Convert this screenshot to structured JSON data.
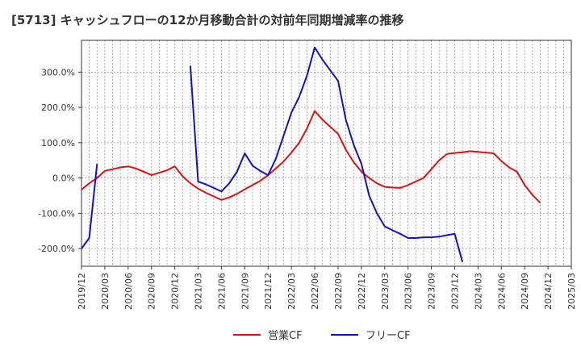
{
  "chart_data": {
    "type": "line",
    "title": "[5713]  キャッシュフローの12か月移動合計の対前年同期増減率の推移",
    "xlabel": "",
    "ylabel": "",
    "x_ticks": [
      "2019/12",
      "2020/03",
      "2020/06",
      "2020/09",
      "2020/12",
      "2021/03",
      "2021/06",
      "2021/09",
      "2021/12",
      "2022/03",
      "2022/06",
      "2022/09",
      "2022/12",
      "2023/03",
      "2023/06",
      "2023/09",
      "2023/12",
      "2024/03",
      "2024/06",
      "2024/09",
      "2024/12",
      "2025/03"
    ],
    "y_ticks": [
      -200,
      -100,
      0,
      100,
      200,
      300
    ],
    "y_tick_labels": [
      "-200.0%",
      "-100.0%",
      "0.0%",
      "100.0%",
      "200.0%",
      "300.0%"
    ],
    "ylim": [
      -250,
      390
    ],
    "grid": true,
    "legend_position": "bottom-center",
    "series": [
      {
        "name": "営業CF",
        "color": "#dd1111",
        "points": [
          [
            0,
            -33
          ],
          [
            1,
            -15
          ],
          [
            2,
            0
          ],
          [
            3,
            20
          ],
          [
            4,
            25
          ],
          [
            5,
            30
          ],
          [
            6,
            33
          ],
          [
            7,
            27
          ],
          [
            8,
            18
          ],
          [
            9,
            8
          ],
          [
            10,
            15
          ],
          [
            11,
            22
          ],
          [
            12,
            33
          ],
          [
            13,
            5
          ],
          [
            14,
            -15
          ],
          [
            15,
            -30
          ],
          [
            16,
            -42
          ],
          [
            17,
            -52
          ],
          [
            18,
            -62
          ],
          [
            19,
            -55
          ],
          [
            20,
            -45
          ],
          [
            21,
            -32
          ],
          [
            22,
            -20
          ],
          [
            23,
            -8
          ],
          [
            24,
            8
          ],
          [
            25,
            27
          ],
          [
            26,
            47
          ],
          [
            27,
            72
          ],
          [
            28,
            100
          ],
          [
            29,
            140
          ],
          [
            30,
            190
          ],
          [
            31,
            165
          ],
          [
            32,
            145
          ],
          [
            33,
            125
          ],
          [
            34,
            80
          ],
          [
            35,
            45
          ],
          [
            36,
            18
          ],
          [
            37,
            0
          ],
          [
            38,
            -15
          ],
          [
            39,
            -25
          ],
          [
            40,
            -27
          ],
          [
            41,
            -28
          ],
          [
            42,
            -20
          ],
          [
            43,
            -10
          ],
          [
            44,
            0
          ],
          [
            45,
            25
          ],
          [
            46,
            50
          ],
          [
            47,
            68
          ],
          [
            48,
            71
          ],
          [
            49,
            73
          ],
          [
            50,
            76
          ],
          [
            51,
            74
          ],
          [
            52,
            72
          ],
          [
            53,
            70
          ],
          [
            54,
            48
          ],
          [
            55,
            30
          ],
          [
            56,
            18
          ],
          [
            57,
            -20
          ],
          [
            58,
            -48
          ],
          [
            59,
            -70
          ]
        ]
      },
      {
        "name": "フリーCF",
        "color": "#1111cc",
        "segments": [
          [
            [
              0,
              -200
            ],
            [
              1,
              -170
            ],
            [
              2,
              40
            ]
          ],
          [
            [
              14,
              318
            ],
            [
              15,
              -10
            ],
            [
              16,
              -18
            ],
            [
              17,
              -28
            ],
            [
              18,
              -38
            ],
            [
              19,
              -15
            ],
            [
              20,
              18
            ],
            [
              21,
              70
            ],
            [
              22,
              35
            ],
            [
              23,
              20
            ],
            [
              24,
              8
            ],
            [
              25,
              55
            ],
            [
              26,
              120
            ],
            [
              27,
              185
            ],
            [
              28,
              230
            ],
            [
              29,
              290
            ],
            [
              30,
              370
            ],
            [
              31,
              335
            ],
            [
              32,
              305
            ],
            [
              33,
              275
            ],
            [
              34,
              165
            ],
            [
              35,
              95
            ],
            [
              36,
              40
            ],
            [
              37,
              -50
            ],
            [
              38,
              -100
            ],
            [
              39,
              -137
            ],
            [
              40,
              -148
            ],
            [
              41,
              -158
            ],
            [
              42,
              -170
            ],
            [
              43,
              -170
            ],
            [
              44,
              -168
            ],
            [
              45,
              -168
            ],
            [
              46,
              -166
            ],
            [
              47,
              -162
            ],
            [
              48,
              -158
            ],
            [
              49,
              -238
            ]
          ]
        ]
      }
    ]
  }
}
